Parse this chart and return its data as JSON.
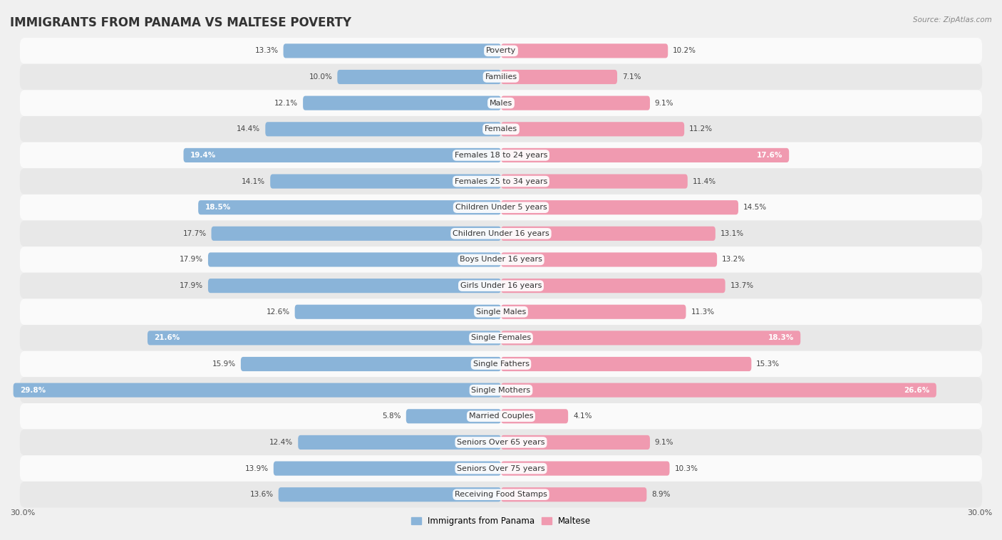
{
  "title": "IMMIGRANTS FROM PANAMA VS MALTESE POVERTY",
  "source": "Source: ZipAtlas.com",
  "categories": [
    "Poverty",
    "Families",
    "Males",
    "Females",
    "Females 18 to 24 years",
    "Females 25 to 34 years",
    "Children Under 5 years",
    "Children Under 16 years",
    "Boys Under 16 years",
    "Girls Under 16 years",
    "Single Males",
    "Single Females",
    "Single Fathers",
    "Single Mothers",
    "Married Couples",
    "Seniors Over 65 years",
    "Seniors Over 75 years",
    "Receiving Food Stamps"
  ],
  "panama_values": [
    13.3,
    10.0,
    12.1,
    14.4,
    19.4,
    14.1,
    18.5,
    17.7,
    17.9,
    17.9,
    12.6,
    21.6,
    15.9,
    29.8,
    5.8,
    12.4,
    13.9,
    13.6
  ],
  "maltese_values": [
    10.2,
    7.1,
    9.1,
    11.2,
    17.6,
    11.4,
    14.5,
    13.1,
    13.2,
    13.7,
    11.3,
    18.3,
    15.3,
    26.6,
    4.1,
    9.1,
    10.3,
    8.9
  ],
  "panama_color": "#8ab4d9",
  "maltese_color": "#f09ab0",
  "background_color": "#f0f0f0",
  "row_color_light": "#fafafa",
  "row_color_dark": "#e8e8e8",
  "xlim": 30.0,
  "bar_height": 0.55,
  "legend_panama": "Immigrants from Panama",
  "legend_maltese": "Maltese",
  "title_fontsize": 12,
  "label_fontsize": 8,
  "value_fontsize": 7.5,
  "axis_fontsize": 8,
  "inside_label_threshold_panama": 18.0,
  "inside_label_threshold_maltese": 15.5
}
